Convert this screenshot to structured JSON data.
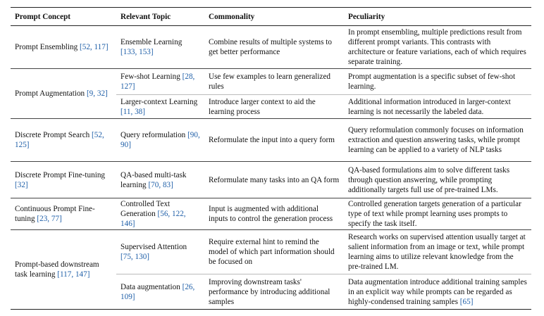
{
  "table": {
    "header": [
      "Prompt Concept",
      "Relevant Topic",
      "Commonality",
      "Peculiarity"
    ],
    "groups": [
      {
        "concept": {
          "text": "Prompt Ensembling",
          "cite": "[52, 117]"
        },
        "rows": [
          {
            "topic": {
              "text": "Ensemble Learning",
              "cite": "[133, 153]"
            },
            "commonality": "Combine results of multiple systems to get better performance",
            "peculiarity": {
              "text": "In prompt ensembling, multiple predictions result from different prompt variants. This contrasts with architecture or feature variations, each of which requires separate training."
            }
          }
        ]
      },
      {
        "concept": {
          "text": "Prompt Augmentation",
          "cite": "[9, 32]"
        },
        "rows": [
          {
            "topic": {
              "text": "Few-shot Learning",
              "cite": "[28, 127]"
            },
            "commonality": "Use few examples to learn generalized rules",
            "peculiarity": {
              "text": "Prompt augmentation is a specific subset of few-shot learning."
            }
          },
          {
            "topic": {
              "text": "Larger-context Learning",
              "cite": "[11, 38]"
            },
            "commonality": "Introduce larger context to aid the learning process",
            "peculiarity": {
              "text": "Additional information introduced in larger-context learning is not necessarily the labeled data."
            }
          }
        ]
      },
      {
        "concept": {
          "text": "Discrete Prompt Search",
          "cite": "[52, 125]"
        },
        "rows": [
          {
            "topic": {
              "text": "Query reformulation",
              "cite": "[90, 90]"
            },
            "commonality": "Reformulate the input into a query form",
            "peculiarity": {
              "text": "Query reformulation commonly focuses on information extraction and question answering tasks, while prompt learning can be applied to a variety of NLP tasks"
            }
          }
        ]
      },
      {
        "concept": {
          "text": "Discrete Prompt Fine-tuning",
          "cite": "[32]"
        },
        "rows": [
          {
            "topic": {
              "text": "QA-based multi-task learning",
              "cite": "[70, 83]"
            },
            "commonality": "Reformulate many tasks into an QA form",
            "peculiarity": {
              "text": "QA-based formulations aim to solve different tasks through question answering, while prompting additionally targets full use of pre-trained LMs."
            }
          }
        ]
      },
      {
        "concept": {
          "text": "Continuous Prompt Fine-tuning",
          "cite": "[23, 77]"
        },
        "rows": [
          {
            "topic": {
              "text": "Controlled Text Generation",
              "cite": "[56, 122, 146]"
            },
            "commonality": "Input is augmented with additional inputs to control the generation process",
            "peculiarity": {
              "text": "Controlled generation targets generation of a particular type of text while prompt learning uses prompts to specify the task itself."
            }
          }
        ]
      },
      {
        "concept": {
          "text": "Prompt-based downstream task learning",
          "cite": "[117, 147]"
        },
        "rows": [
          {
            "topic": {
              "text": "Supervised Attention",
              "cite": "[75, 130]"
            },
            "commonality": "Require external hint to remind the model of which part information should be focused on",
            "peculiarity": {
              "text": "Research works on supervised attention usually target at salient information from an image or text, while prompt learning aims to utilize relevant knowledge from the pre-trained LM."
            }
          },
          {
            "topic": {
              "text": "Data augmentation",
              "cite": "[26, 109]"
            },
            "commonality": "Improving downstream tasks' performance by introducing additional samples",
            "peculiarity": {
              "text": "Data augmentation introduce additional training samples in an explicit way while prompts can be regarded as highly-condensed training samples",
              "cite": "[65]"
            }
          }
        ]
      }
    ]
  }
}
